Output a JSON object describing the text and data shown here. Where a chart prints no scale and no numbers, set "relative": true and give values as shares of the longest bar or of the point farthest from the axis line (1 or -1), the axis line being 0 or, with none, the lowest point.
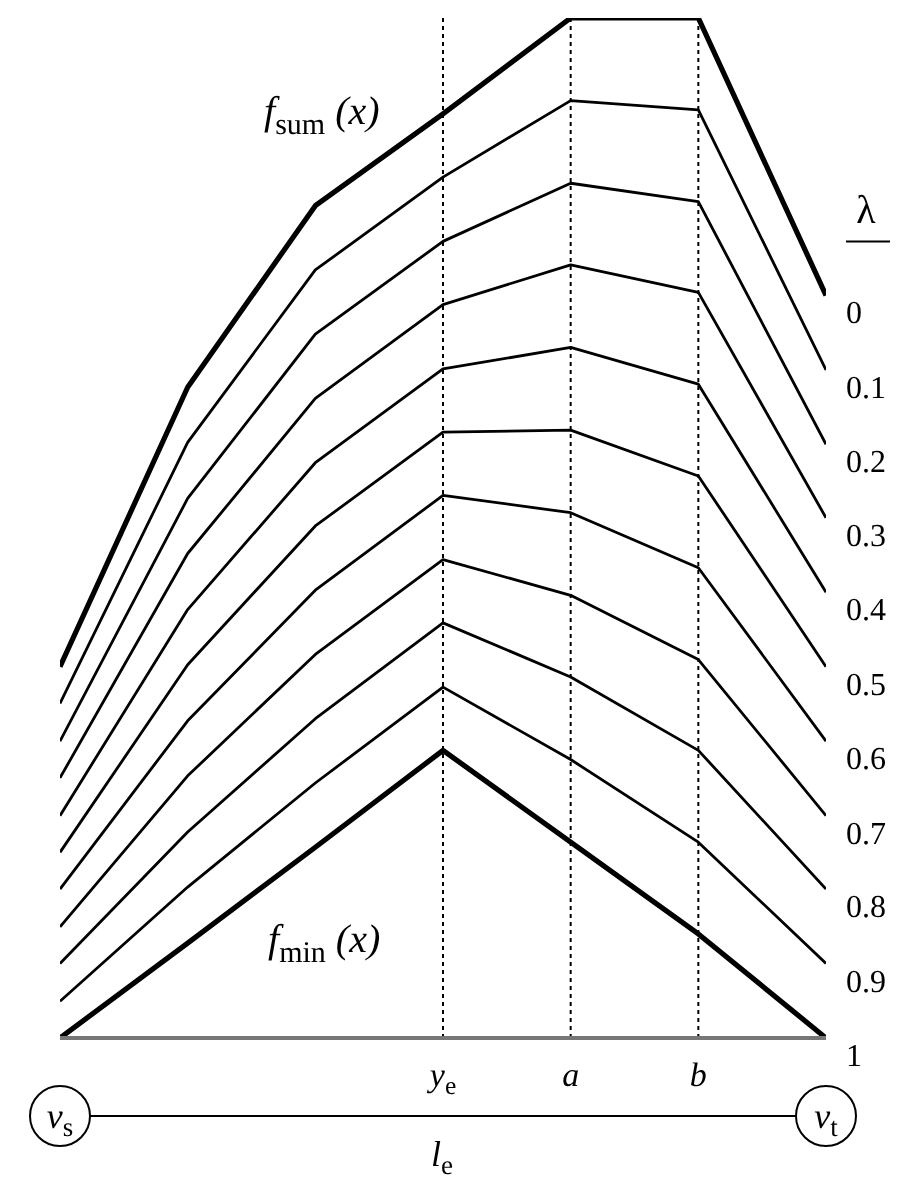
{
  "chart_data": {
    "type": "line",
    "relative": true,
    "categories": [
      null,
      null,
      null,
      "y$_{e}$",
      "a",
      "b",
      null
    ],
    "legend": "right",
    "legend_title": "λ",
    "marker": "none",
    "line_style": "solid",
    "series": [
      {
        "name": "0",
        "color": "#000000",
        "values": [
          0.364,
          0.638,
          0.816,
          0.906,
          1,
          1,
          0.728
        ]
      },
      {
        "name": "0.1",
        "color": "#000000",
        "values": [
          0.328,
          0.584,
          0.753,
          0.844,
          0.919,
          0.91,
          0.655
        ]
      },
      {
        "name": "0.2",
        "color": "#000000",
        "values": [
          0.291,
          0.529,
          0.69,
          0.781,
          0.838,
          0.82,
          0.582
        ]
      },
      {
        "name": "0.3",
        "color": "#000000",
        "values": [
          0.255,
          0.475,
          0.627,
          0.719,
          0.758,
          0.731,
          0.51
        ]
      },
      {
        "name": "0.4",
        "color": "#000000",
        "values": [
          0.218,
          0.42,
          0.564,
          0.656,
          0.677,
          0.641,
          0.437
        ]
      },
      {
        "name": "0.5",
        "color": "#000000",
        "values": [
          0.182,
          0.366,
          0.502,
          0.594,
          0.596,
          0.551,
          0.364
        ]
      },
      {
        "name": "0.6",
        "color": "#000000",
        "values": [
          0.146,
          0.311,
          0.439,
          0.532,
          0.515,
          0.461,
          0.291
        ]
      },
      {
        "name": "0.7",
        "color": "#000000",
        "values": [
          0.109,
          0.257,
          0.376,
          0.469,
          0.434,
          0.371,
          0.218
        ]
      },
      {
        "name": "0.8",
        "color": "#000000",
        "values": [
          0.073,
          0.202,
          0.313,
          0.407,
          0.354,
          0.282,
          0.146
        ]
      },
      {
        "name": "0.9",
        "color": "#000000",
        "values": [
          0.036,
          0.148,
          0.25,
          0.344,
          0.273,
          0.192,
          0.073
        ]
      },
      {
        "name": "1",
        "color": "#000000",
        "values": [
          0,
          0.093,
          0.187,
          0.282,
          0.192,
          0.102,
          0
        ]
      }
    ],
    "ref_lines": [
      {
        "axis": "x",
        "value": "y$_{e}$",
        "line_style": "dotted"
      },
      {
        "axis": "x",
        "value": "a",
        "line_style": "dotted"
      },
      {
        "axis": "x",
        "value": "b",
        "line_style": "dotted"
      }
    ],
    "annotations": [
      "f$_{sum}$ (x)",
      "f$_{min}$ (x)",
      "v$_{s}$",
      "v$_{t}$",
      "l$_{e}$"
    ]
  }
}
